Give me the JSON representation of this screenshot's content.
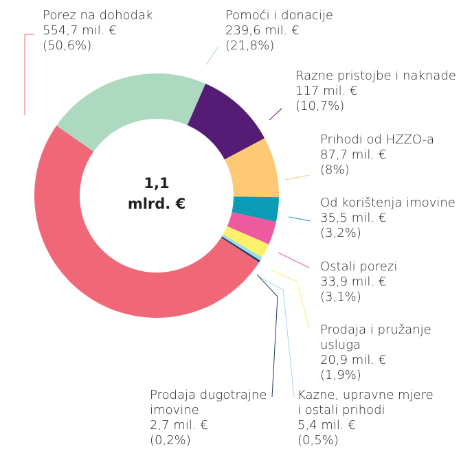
{
  "chart_data": {
    "type": "donut",
    "center_label": [
      "1,1",
      "mlrd. €"
    ],
    "categories": [
      "Porez na dohodak",
      "Pomoći i donacije",
      "Razne pristojbe i naknade",
      "Prihodi od HZZO-a",
      "Od korištenja imovine",
      "Ostali porezi",
      "Prodaja i pružanje usluga",
      "Kazne, upravne mjere\ni ostali prihodi",
      "Prodaja dugotrajne\nimovine"
    ],
    "values": [
      554.7,
      239.6,
      117,
      87.7,
      35.5,
      33.9,
      20.9,
      5.4,
      2.7
    ],
    "value_labels": [
      "554,7 mil. €",
      "239,6 mil. €",
      "117 mil. €",
      "87,7 mil. €",
      "35,5 mil. €",
      "33,9 mil. €",
      "20,9 mil. €",
      "5,4 mil. €",
      "2,7 mil. €"
    ],
    "percents": [
      50.6,
      21.8,
      10.7,
      8,
      3.2,
      3.1,
      1.9,
      0.5,
      0.2
    ],
    "percent_labels": [
      "(50,6%)",
      "(21,8%)",
      "(10,7%)",
      "(8%)",
      "(3,2%)",
      "(3,1%)",
      "(1,9%)",
      "(0,5%)",
      "(0,2%)"
    ],
    "colors": [
      "#f06877",
      "#acd9bf",
      "#541c74",
      "#fdc974",
      "#0a9bb5",
      "#ee5aa0",
      "#fdf06a",
      "#9fd8ef",
      "#1d3a5e"
    ]
  }
}
